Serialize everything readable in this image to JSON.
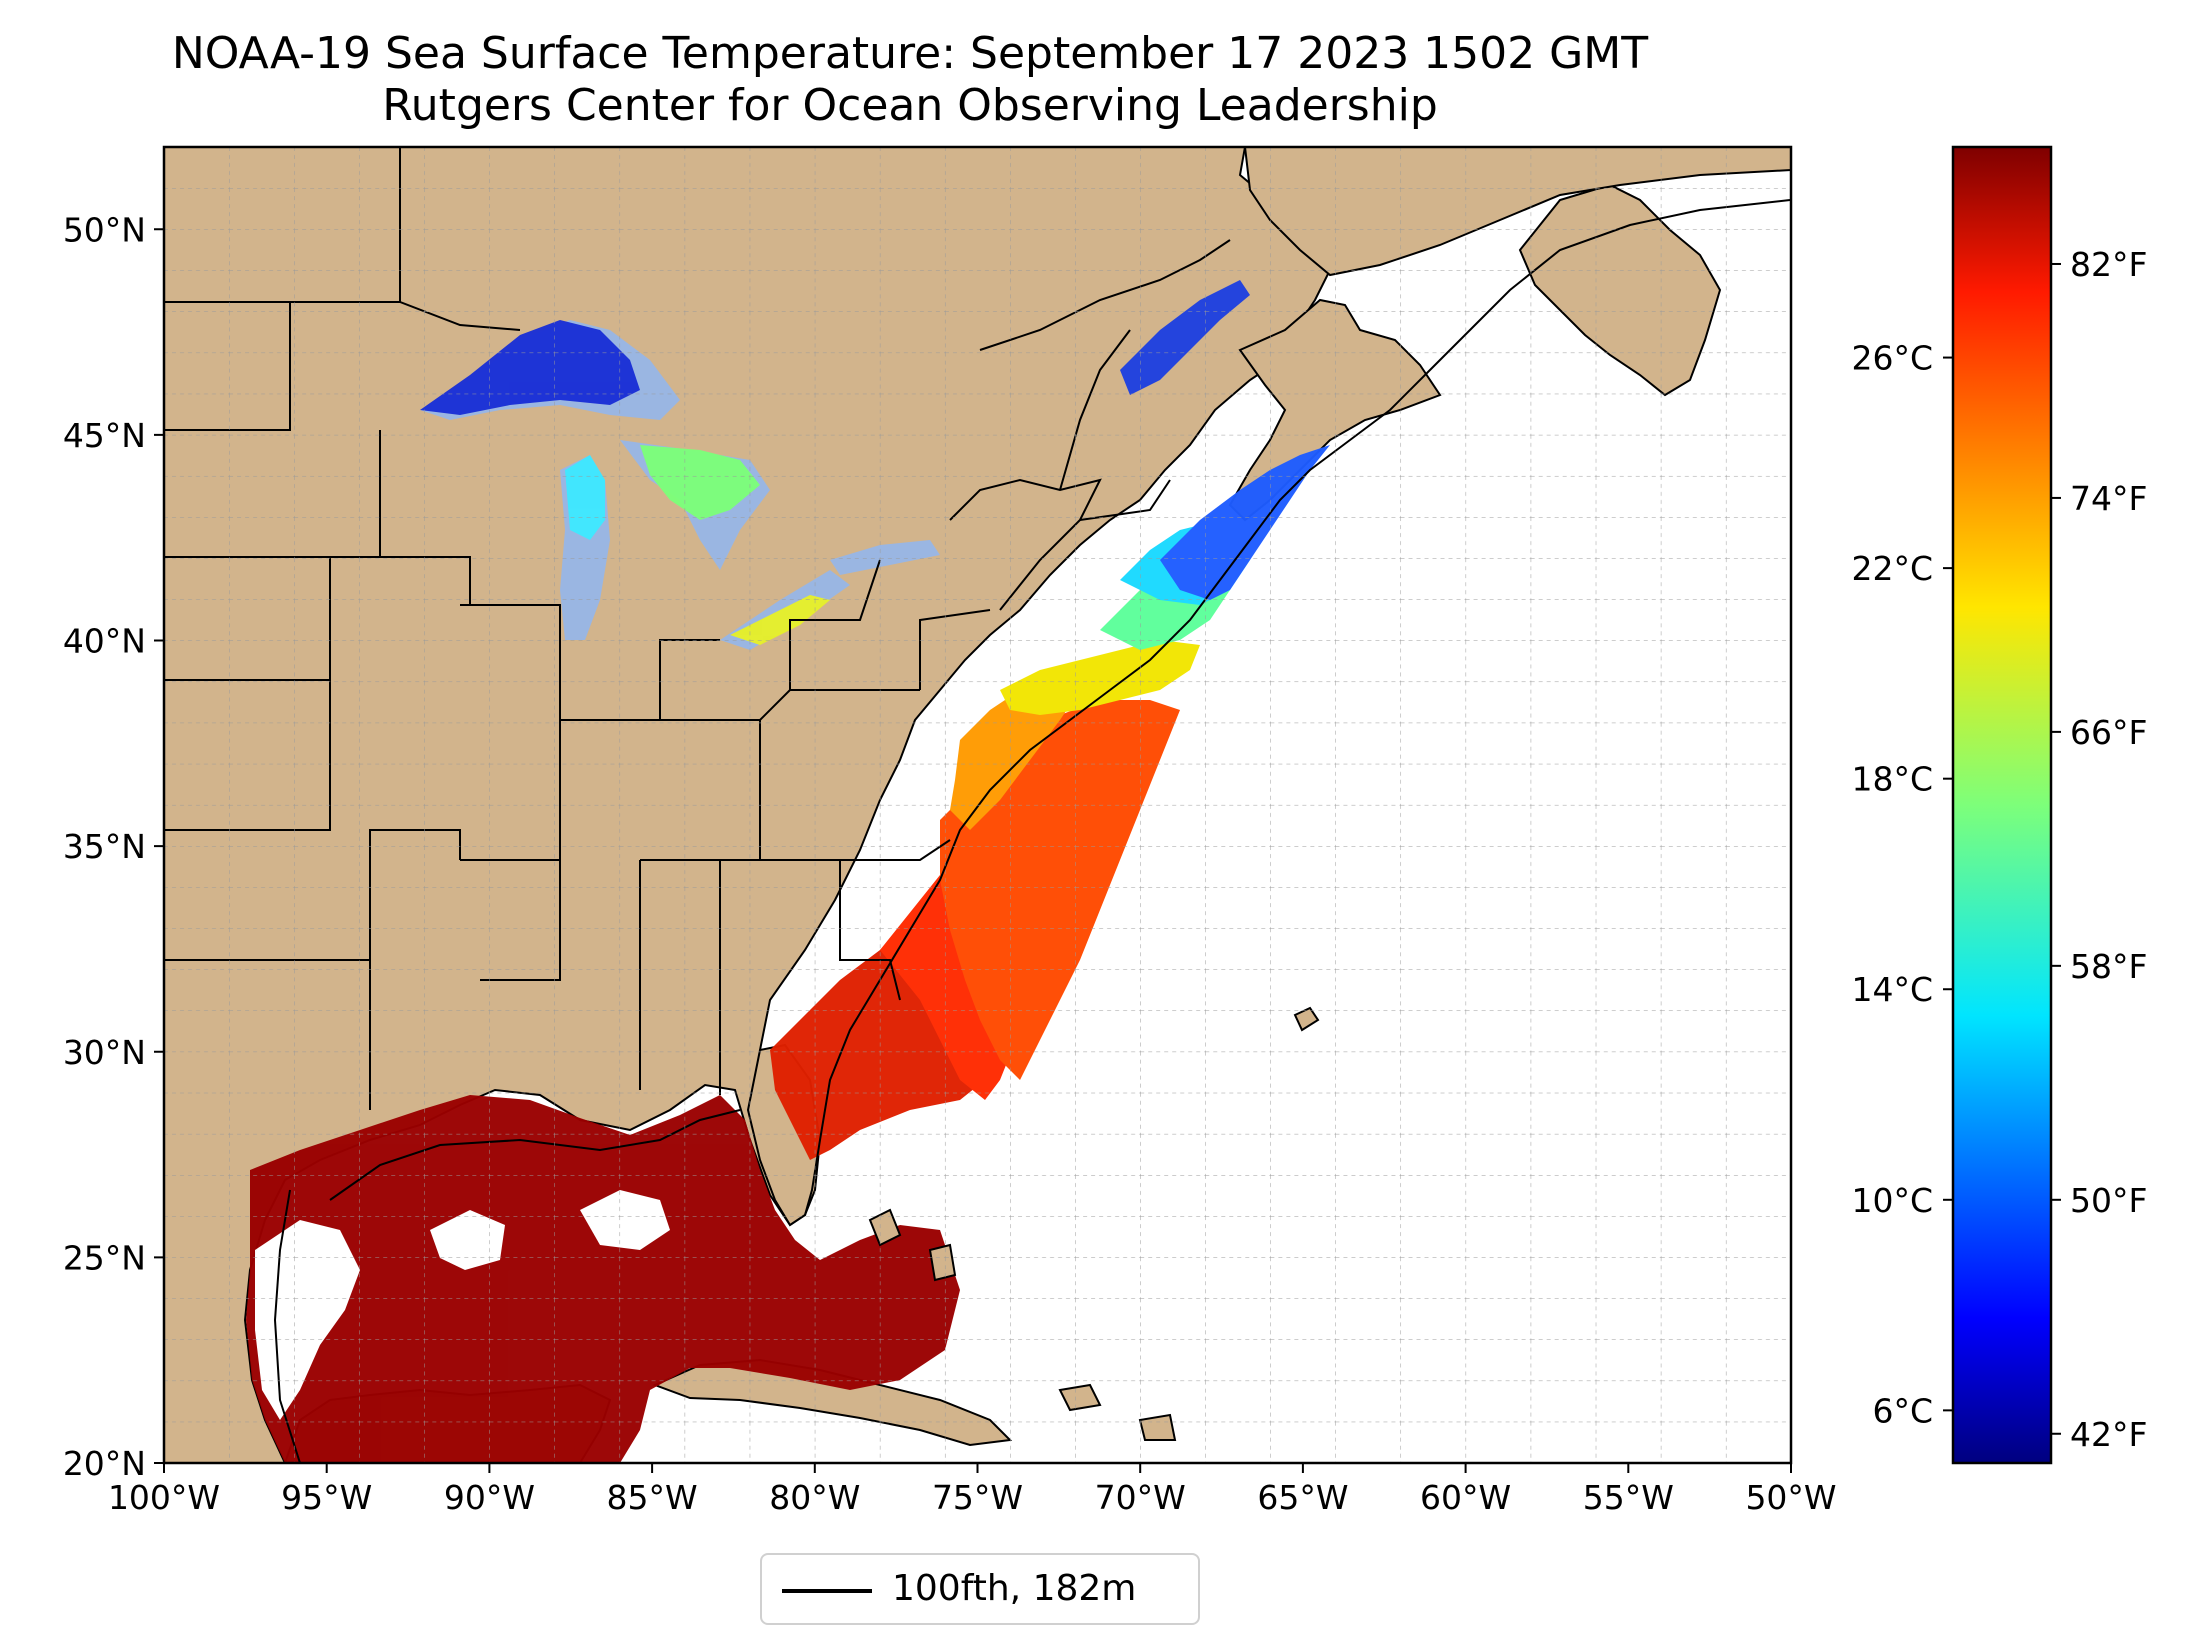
{
  "title": "NOAA-19 Sea Surface Temperature: September 17 2023 1502 GMT",
  "subtitle": "Rutgers Center for Ocean Observing Leadership",
  "map": {
    "projection": "lat-lon",
    "lon_range": [
      -100,
      -50
    ],
    "lat_range": [
      20,
      52
    ],
    "x_tick_labels": [
      "100°W",
      "95°W",
      "90°W",
      "85°W",
      "80°W",
      "75°W",
      "70°W",
      "65°W",
      "60°W",
      "55°W",
      "50°W"
    ],
    "y_tick_labels": [
      "20°N",
      "25°N",
      "30°N",
      "35°N",
      "40°N",
      "45°N",
      "50°N"
    ],
    "land_color": "#d2b48c",
    "lake_color": "#9ab6e2",
    "gridlines": true,
    "gridline_style": "dashed",
    "features": [
      "coastlines",
      "state borders",
      "country borders",
      "100 fathom isobath"
    ]
  },
  "colorbar": {
    "colormap": "jet",
    "celsius_ticks": [
      "6°C",
      "10°C",
      "14°C",
      "18°C",
      "22°C",
      "26°C"
    ],
    "fahrenheit_ticks": [
      "42°F",
      "50°F",
      "58°F",
      "66°F",
      "74°F",
      "82°F"
    ],
    "range_celsius": [
      5.0,
      30.0
    ]
  },
  "legend": {
    "label": "100fth, 182m",
    "line_color": "#000000",
    "placement": "bottom-center"
  }
}
